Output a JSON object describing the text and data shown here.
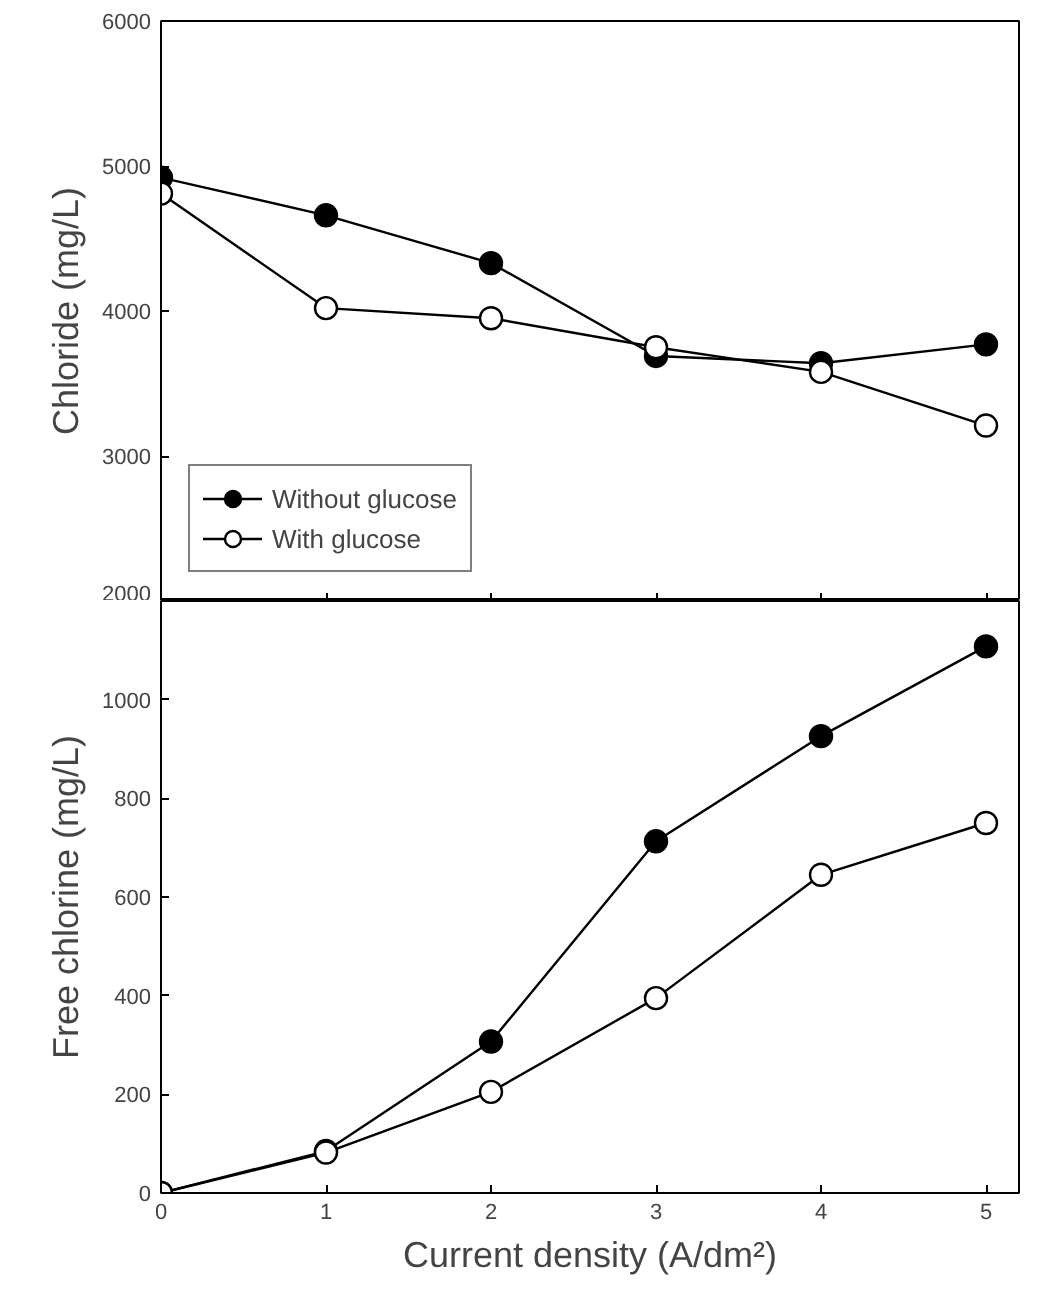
{
  "chart_data": [
    {
      "type": "line",
      "ylabel": "Chloride (mg/L)",
      "x": [
        0,
        1,
        2,
        3,
        4,
        5
      ],
      "xlim": [
        0,
        5.2
      ],
      "xticks": [
        0,
        1,
        2,
        3,
        4,
        5
      ],
      "ylim": [
        2000,
        6000
      ],
      "yticks": [
        2000,
        3000,
        4000,
        5000,
        6000
      ],
      "tick_labels": "y",
      "marker": "circle",
      "legend": "bottom left",
      "series": [
        {
          "name": "Without glucose",
          "color": "#000000",
          "values": [
            4920,
            4660,
            4330,
            3690,
            3640,
            3770
          ]
        },
        {
          "name": "With glucose",
          "color": "#000000",
          "values": [
            4810,
            4020,
            3950,
            3750,
            3580,
            3210
          ]
        }
      ]
    },
    {
      "type": "line",
      "ylabel": "Free chlorine (mg/L)",
      "xlabel": "Current density (A/dm²)",
      "x": [
        0,
        1,
        2,
        3,
        4,
        5
      ],
      "xlim": [
        0,
        5.2
      ],
      "xticks": [
        0,
        1,
        2,
        3,
        4,
        5
      ],
      "ylim": [
        0,
        1200
      ],
      "yticks": [
        0,
        200,
        400,
        600,
        800,
        1000
      ],
      "marker": "circle",
      "series": [
        {
          "color": "#000000",
          "values": [
            0,
            85,
            307,
            713,
            926,
            1108
          ]
        },
        {
          "color": "#000000",
          "values": [
            0,
            82,
            205,
            395,
            645,
            750
          ]
        }
      ]
    }
  ]
}
